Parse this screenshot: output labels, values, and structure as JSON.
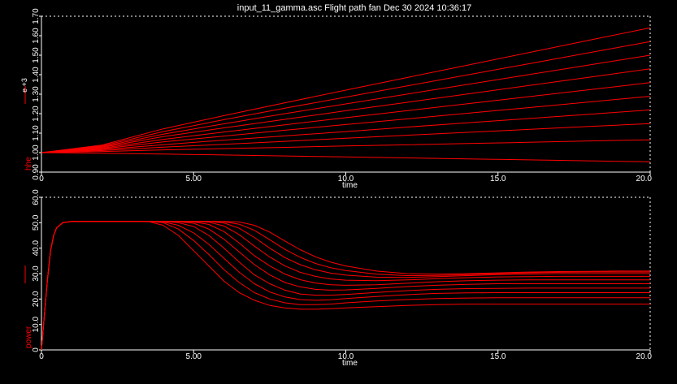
{
  "title": "input_11_gamma.asc Flight path fan  Dec 30 2024 10:36:17",
  "colors": {
    "background": "#000000",
    "trace": "#ff0000",
    "axis": "#ffffff",
    "tick_label": "#ffffff",
    "axis_label_side": "#ff0000"
  },
  "chart_data": [
    {
      "type": "line",
      "name_panel": "top",
      "xlabel": "time",
      "ylabel": "hhe",
      "y_multiplier_label": "e +3",
      "xlim": [
        0,
        20
      ],
      "ylim": [
        0.9,
        1.7
      ],
      "x_ticks": [
        "0",
        "5.00",
        "10.0",
        "15.0",
        "20.0"
      ],
      "y_ticks": [
        "0.90",
        "1.00",
        "1.10",
        "1.20",
        "1.30",
        "1.40",
        "1.50",
        "1.60",
        "1.70"
      ],
      "grid": false,
      "x": [
        0,
        2,
        4,
        6,
        8,
        10,
        12,
        14,
        16,
        18,
        20
      ],
      "series": [
        {
          "values": [
            1.0,
            0.997,
            0.993,
            0.988,
            0.983,
            0.978,
            0.973,
            0.968,
            0.963,
            0.958,
            0.953
          ]
        },
        {
          "values": [
            1.0,
            1.006,
            1.014,
            1.021,
            1.027,
            1.034,
            1.04,
            1.047,
            1.053,
            1.06,
            1.066
          ]
        },
        {
          "values": [
            1.0,
            1.011,
            1.028,
            1.043,
            1.058,
            1.074,
            1.089,
            1.104,
            1.119,
            1.134,
            1.149
          ]
        },
        {
          "values": [
            1.0,
            1.015,
            1.041,
            1.064,
            1.086,
            1.108,
            1.131,
            1.153,
            1.175,
            1.197,
            1.219
          ]
        },
        {
          "values": [
            1.0,
            1.019,
            1.055,
            1.085,
            1.115,
            1.144,
            1.173,
            1.202,
            1.231,
            1.26,
            1.289
          ]
        },
        {
          "values": [
            1.0,
            1.023,
            1.068,
            1.106,
            1.143,
            1.179,
            1.215,
            1.251,
            1.287,
            1.323,
            1.359
          ]
        },
        {
          "values": [
            1.0,
            1.027,
            1.082,
            1.127,
            1.171,
            1.215,
            1.258,
            1.301,
            1.344,
            1.387,
            1.43
          ]
        },
        {
          "values": [
            1.0,
            1.031,
            1.095,
            1.148,
            1.2,
            1.25,
            1.3,
            1.35,
            1.4,
            1.45,
            1.5
          ]
        },
        {
          "values": [
            1.0,
            1.035,
            1.108,
            1.169,
            1.228,
            1.285,
            1.342,
            1.399,
            1.456,
            1.513,
            1.57
          ]
        },
        {
          "values": [
            1.0,
            1.039,
            1.122,
            1.19,
            1.256,
            1.321,
            1.385,
            1.449,
            1.513,
            1.577,
            1.641
          ]
        }
      ]
    },
    {
      "type": "line",
      "name_panel": "bottom",
      "xlabel": "time",
      "ylabel": "power",
      "xlim": [
        0,
        20
      ],
      "ylim": [
        0,
        60
      ],
      "x_ticks": [
        "0",
        "5.00",
        "10.0",
        "15.0",
        "20.0"
      ],
      "y_ticks": [
        "0",
        "10.0",
        "20.0",
        "30.0",
        "40.0",
        "50.0",
        "60.0"
      ],
      "grid": false,
      "x": [
        0,
        0.1,
        0.2,
        0.3,
        0.4,
        0.5,
        0.7,
        1.0,
        1.5,
        2,
        3,
        3.5,
        4,
        4.5,
        5,
        5.5,
        6,
        6.5,
        7,
        7.5,
        8,
        8.5,
        9,
        9.5,
        10,
        11,
        12,
        13,
        14,
        15,
        16,
        17,
        18,
        19,
        20
      ],
      "series": [
        {
          "values": [
            0,
            14,
            28,
            39,
            45,
            48,
            50,
            50.5,
            50.5,
            50.5,
            50.5,
            50.5,
            49,
            45,
            39,
            33,
            27,
            22.5,
            19.5,
            17.5,
            16.5,
            16,
            16,
            16.2,
            16.5,
            17,
            17.5,
            17.8,
            18,
            18,
            18,
            18,
            18,
            18,
            18
          ]
        },
        {
          "values": [
            0,
            14,
            28,
            39,
            45,
            48,
            50,
            50.5,
            50.5,
            50.5,
            50.5,
            50.5,
            50,
            47.5,
            43,
            37.5,
            31.5,
            26.5,
            22.5,
            20,
            18.5,
            17.8,
            17.8,
            18,
            18.5,
            19.2,
            19.8,
            20.2,
            20.4,
            20.5,
            20.5,
            20.5,
            20.5,
            20.5,
            20.5
          ]
        },
        {
          "values": [
            0,
            14,
            28,
            39,
            45,
            48,
            50,
            50.5,
            50.5,
            50.5,
            50.5,
            50.5,
            50.3,
            49,
            46,
            41.5,
            36,
            30.5,
            26,
            22.8,
            20.8,
            19.8,
            19.5,
            19.7,
            20.2,
            21,
            21.7,
            22.2,
            22.4,
            22.5,
            22.5,
            22.5,
            22.5,
            22.5,
            22.5
          ]
        },
        {
          "values": [
            0,
            14,
            28,
            39,
            45,
            48,
            50,
            50.5,
            50.5,
            50.5,
            50.5,
            50.5,
            50.5,
            50,
            48.5,
            45,
            40,
            34.5,
            29.5,
            26,
            23.5,
            22,
            21.5,
            21.5,
            21.8,
            22.6,
            23.3,
            23.8,
            24.1,
            24.2,
            24.3,
            24.3,
            24.3,
            24.3,
            24.3
          ]
        },
        {
          "values": [
            0,
            14,
            28,
            39,
            45,
            48,
            50,
            50.5,
            50.5,
            50.5,
            50.5,
            50.5,
            50.5,
            50.4,
            49.8,
            47.5,
            43.5,
            38.5,
            33.5,
            29.5,
            26.5,
            24.8,
            23.8,
            23.5,
            23.6,
            24.2,
            24.9,
            25.4,
            25.8,
            26,
            26,
            26,
            26,
            26,
            26
          ]
        },
        {
          "values": [
            0,
            14,
            28,
            39,
            45,
            48,
            50,
            50.5,
            50.5,
            50.5,
            50.5,
            50.5,
            50.5,
            50.5,
            50.3,
            49.3,
            46.5,
            42,
            37,
            33,
            29.8,
            27.6,
            26.3,
            25.6,
            25.4,
            25.6,
            26.2,
            26.8,
            27.2,
            27.4,
            27.5,
            27.5,
            27.5,
            27.5,
            27.5
          ]
        },
        {
          "values": [
            0,
            14,
            28,
            39,
            45,
            48,
            50,
            50.5,
            50.5,
            50.5,
            50.5,
            50.5,
            50.5,
            50.5,
            50.5,
            50.2,
            48.7,
            45.3,
            40.8,
            36.5,
            33,
            30.5,
            28.9,
            27.9,
            27.4,
            27.2,
            27.5,
            28,
            28.4,
            28.7,
            28.8,
            28.9,
            28.9,
            28.9,
            28.9
          ]
        },
        {
          "values": [
            0,
            14,
            28,
            39,
            45,
            48,
            50,
            50.5,
            50.5,
            50.5,
            50.5,
            50.5,
            50.5,
            50.5,
            50.5,
            50.5,
            49.9,
            47.8,
            44.2,
            40,
            36.3,
            33.5,
            31.5,
            30.2,
            29.4,
            28.6,
            28.5,
            28.8,
            29.2,
            29.6,
            29.8,
            30,
            30,
            30,
            30
          ]
        },
        {
          "values": [
            0,
            14,
            28,
            39,
            45,
            48,
            50,
            50.5,
            50.5,
            50.5,
            50.5,
            50.5,
            50.5,
            50.5,
            50.5,
            50.5,
            50.4,
            49.4,
            47,
            43.3,
            39.5,
            36.4,
            34,
            32.3,
            31.2,
            29.8,
            29.2,
            29.3,
            29.6,
            30,
            30.3,
            30.5,
            30.6,
            30.6,
            30.6
          ]
        },
        {
          "values": [
            0,
            14,
            28,
            39,
            45,
            48,
            50,
            50.5,
            50.5,
            50.5,
            50.5,
            50.5,
            50.5,
            50.5,
            50.5,
            50.5,
            50.5,
            50.3,
            49,
            46.3,
            42.8,
            39.4,
            36.6,
            34.5,
            33,
            31,
            30,
            29.8,
            30,
            30.3,
            30.6,
            30.8,
            30.9,
            31,
            31
          ]
        }
      ]
    }
  ]
}
